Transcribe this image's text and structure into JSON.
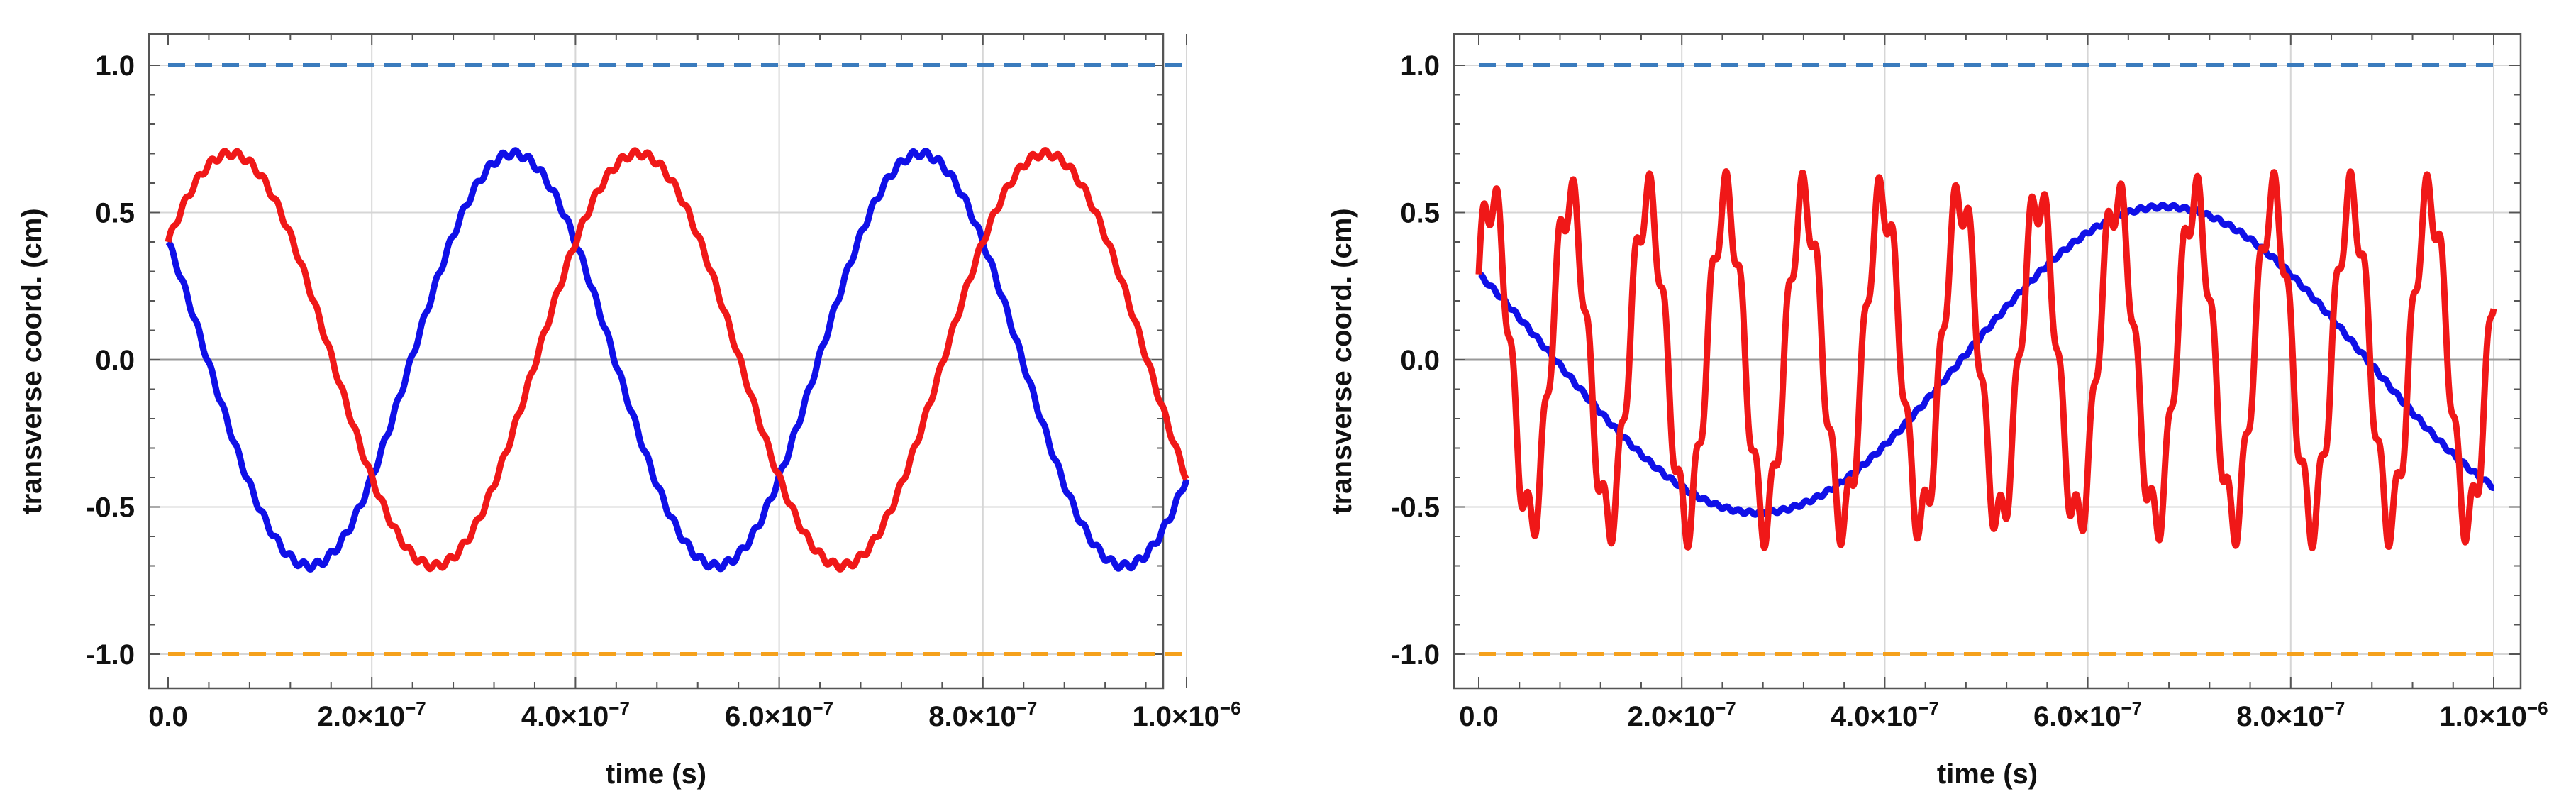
{
  "chart_data": [
    {
      "type": "line",
      "title": "",
      "xlabel": "time (s)",
      "ylabel": "transverse coord. (cm)",
      "xlim": [
        0,
        1e-06
      ],
      "ylim": [
        -1.05,
        1.1
      ],
      "x_ticks": [
        {
          "value": 0,
          "mantissa": "0.0",
          "exponent": ""
        },
        {
          "value": 2e-07,
          "mantissa": "2.0×10",
          "exponent": "−7"
        },
        {
          "value": 4e-07,
          "mantissa": "4.0×10",
          "exponent": "−7"
        },
        {
          "value": 6e-07,
          "mantissa": "6.0×10",
          "exponent": "−7"
        },
        {
          "value": 8e-07,
          "mantissa": "8.0×10",
          "exponent": "−7"
        },
        {
          "value": 1e-06,
          "mantissa": "1.0×10",
          "exponent": "−6"
        }
      ],
      "y_ticks": [
        {
          "value": 1.0,
          "label": "1.0"
        },
        {
          "value": 0.5,
          "label": "0.5"
        },
        {
          "value": 0.0,
          "label": "0.0"
        },
        {
          "value": -0.5,
          "label": "-0.5"
        },
        {
          "value": -1.0,
          "label": "-1.0"
        }
      ],
      "grid": true,
      "reference_lines": [
        {
          "name": "upper-bound",
          "y": 1.0,
          "color": "#3a7bbd",
          "style": "dashed"
        },
        {
          "name": "lower-bound",
          "y": -1.0,
          "color": "#f5a11c",
          "style": "dashed"
        }
      ],
      "series": [
        {
          "name": "blue",
          "color": "#1010e8",
          "amplitude": 0.7,
          "period": 4e-07,
          "y0": 0.4,
          "initial_slope": "negative",
          "ripple_amplitude": 0.012,
          "ripple_period": 1.3e-08
        },
        {
          "name": "red",
          "color": "#f01818",
          "amplitude": 0.7,
          "period": 4e-07,
          "y0": 0.4,
          "initial_slope": "positive",
          "ripple_amplitude": 0.012,
          "ripple_period": 1.3e-08
        }
      ]
    },
    {
      "type": "line",
      "title": "",
      "xlabel": "time (s)",
      "ylabel": "transverse coord. (cm)",
      "xlim": [
        0,
        1e-06
      ],
      "ylim": [
        -1.05,
        1.1
      ],
      "x_ticks": [
        {
          "value": 0,
          "mantissa": "0.0",
          "exponent": ""
        },
        {
          "value": 2e-07,
          "mantissa": "2.0×10",
          "exponent": "−7"
        },
        {
          "value": 4e-07,
          "mantissa": "4.0×10",
          "exponent": "−7"
        },
        {
          "value": 6e-07,
          "mantissa": "6.0×10",
          "exponent": "−7"
        },
        {
          "value": 8e-07,
          "mantissa": "8.0×10",
          "exponent": "−7"
        },
        {
          "value": 1e-06,
          "mantissa": "1.0×10",
          "exponent": "−6"
        }
      ],
      "y_ticks": [
        {
          "value": 1.0,
          "label": "1.0"
        },
        {
          "value": 0.5,
          "label": "0.5"
        },
        {
          "value": 0.0,
          "label": "0.0"
        },
        {
          "value": -0.5,
          "label": "-0.5"
        },
        {
          "value": -1.0,
          "label": "-1.0"
        }
      ],
      "grid": true,
      "reference_lines": [
        {
          "name": "upper-bound",
          "y": 1.0,
          "color": "#3a7bbd",
          "style": "dashed"
        },
        {
          "name": "lower-bound",
          "y": -1.0,
          "color": "#f5a11c",
          "style": "dashed"
        }
      ],
      "series": [
        {
          "name": "blue",
          "color": "#1010e8",
          "amplitude": 0.52,
          "period": 8e-07,
          "y0": 0.29,
          "initial_slope": "negative",
          "ripple_amplitude": 0.006,
          "ripple_period": 1.1e-08
        },
        {
          "name": "red",
          "color": "#f01818",
          "amplitude": 0.55,
          "period": 7.7e-08,
          "y0": 0.29,
          "initial_slope": "positive",
          "ripple_amplitude": 0.09,
          "ripple_period": 1.5e-08
        }
      ]
    }
  ]
}
